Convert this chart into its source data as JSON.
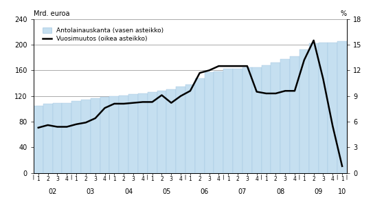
{
  "bar_color": "#c5dff0",
  "bar_edge_color": "#a0c4e0",
  "line_color": "#000000",
  "background_color": "#ffffff",
  "grid_color": "#888888",
  "ylabel_left": "Mrd. euroa",
  "ylabel_right": "%",
  "ylim_left": [
    0,
    240
  ],
  "ylim_right": [
    0,
    18
  ],
  "yticks_left": [
    0,
    40,
    80,
    120,
    160,
    200,
    240
  ],
  "yticks_right": [
    0,
    3,
    6,
    9,
    12,
    15,
    18
  ],
  "legend_bar": "Antolainauskanta (vasen asteikko)",
  "legend_line": "Vuosimuutos (oikea asteikko)",
  "quarters": [
    "1",
    "2",
    "3",
    "4",
    "1",
    "2",
    "3",
    "4",
    "1",
    "2",
    "3",
    "4",
    "1",
    "2",
    "3",
    "4",
    "1",
    "2",
    "3",
    "4",
    "1",
    "2",
    "3",
    "4",
    "1",
    "2",
    "3",
    "4",
    "1",
    "2",
    "3",
    "4",
    "1"
  ],
  "year_labels": [
    "02",
    "03",
    "04",
    "05",
    "06",
    "07",
    "08",
    "09",
    "10"
  ],
  "year_positions": [
    1.5,
    5.5,
    9.5,
    13.5,
    17.5,
    21.5,
    25.5,
    29.5,
    32
  ],
  "bar_values": [
    105,
    108,
    109,
    109,
    112,
    114,
    116,
    119,
    120,
    121,
    123,
    124,
    126,
    128,
    130,
    135,
    138,
    147,
    157,
    158,
    162,
    163,
    165,
    165,
    168,
    172,
    177,
    182,
    193,
    202,
    203,
    203,
    205
  ],
  "line_values": [
    5.3,
    5.6,
    5.4,
    5.4,
    5.7,
    5.9,
    6.4,
    7.6,
    8.1,
    8.1,
    8.2,
    8.3,
    8.3,
    9.1,
    8.2,
    9.0,
    9.6,
    11.7,
    12.0,
    12.5,
    12.5,
    12.5,
    12.5,
    9.5,
    9.3,
    9.3,
    9.6,
    9.6,
    13.2,
    15.5,
    11.0,
    5.5,
    0.8
  ]
}
